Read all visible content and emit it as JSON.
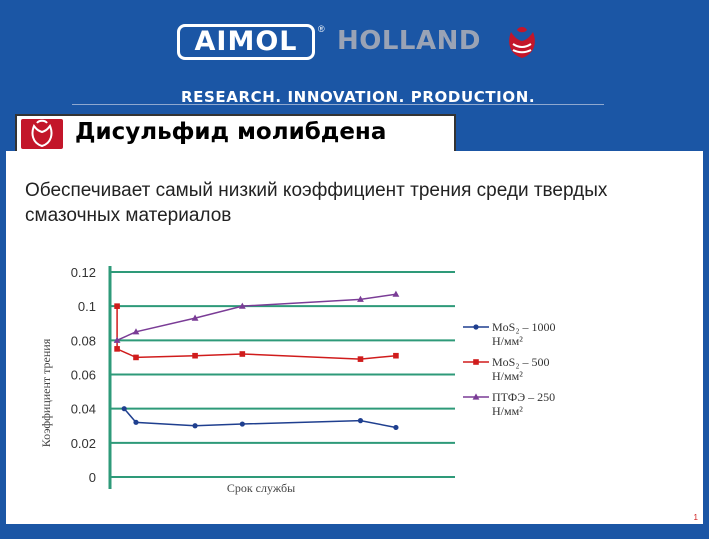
{
  "header": {
    "aimol": "AIMOL",
    "registered": "®",
    "holland": "HOLLAND",
    "tagline": "RESEARCH. INNOVATION. PRODUCTION."
  },
  "slide": {
    "title": "Дисульфид молибдена",
    "subtitle": "Обеспечивает самый низкий коэффициент трения среди твердых смазочных материалов",
    "page": "1"
  },
  "colors": {
    "background": "#1b56a5",
    "brand_red": "#c3162a",
    "grid": "#2e9a79"
  },
  "chart_data": {
    "type": "line",
    "xlabel": "Срок службы",
    "ylabel": "Коэффициент трения",
    "ylim": [
      0,
      0.12
    ],
    "yticks": [
      "0",
      "0.02",
      "0.04",
      "0.06",
      "0.08",
      "0.1",
      "0.12"
    ],
    "grid": true,
    "legend_position": "right",
    "series": [
      {
        "name_line1": "MoS₂ – 1000",
        "name_line2": "Н/мм²",
        "color": "#1f3f8f",
        "marker": "circle",
        "x": [
          0,
          0.05,
          0.3,
          0.5,
          1.0,
          1.15
        ],
        "y": [
          0.04,
          0.032,
          0.03,
          0.031,
          0.033,
          0.029
        ]
      },
      {
        "name_line1": "MoS₂ – 500",
        "name_line2": "Н/мм²",
        "color": "#d01c1c",
        "marker": "square",
        "x": [
          -0.03,
          -0.03,
          0.05,
          0.3,
          0.5,
          1.0,
          1.15
        ],
        "y": [
          0.1,
          0.075,
          0.07,
          0.071,
          0.072,
          0.069,
          0.071
        ]
      },
      {
        "name_line1": "ПТФЭ – 250",
        "name_line2": "Н/мм²",
        "color": "#7a3c96",
        "marker": "triangle",
        "x": [
          -0.03,
          0.05,
          0.3,
          0.5,
          1.0,
          1.15
        ],
        "y": [
          0.08,
          0.085,
          0.093,
          0.1,
          0.104,
          0.107
        ]
      }
    ]
  }
}
